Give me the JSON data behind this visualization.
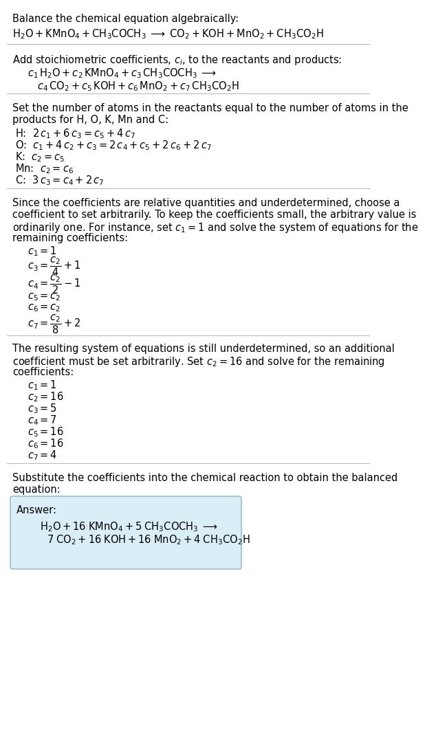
{
  "bg_color": "#ffffff",
  "text_color": "#000000",
  "box_fill": "#daeef8",
  "box_edge": "#8ab4c8",
  "sep_color": "#bbbbbb",
  "fs": 10.5,
  "fs_math": 10.5,
  "s1_head": "Balance the chemical equation algebraically:",
  "s1_eq": "$\\mathrm{H_2O + KMnO_4 + CH_3COCH_3 \\;\\longrightarrow\\; CO_2 + KOH + MnO_2 + CH_3CO_2H}$",
  "s2_head": "Add stoichiometric coefficients, $c_i$, to the reactants and products:",
  "s2_l1": "$c_1\\,\\mathrm{H_2O} + c_2\\,\\mathrm{KMnO_4} + c_3\\,\\mathrm{CH_3COCH_3} \\;\\longrightarrow$",
  "s2_l2": "$c_4\\,\\mathrm{CO_2} + c_5\\,\\mathrm{KOH} + c_6\\,\\mathrm{MnO_2} + c_7\\,\\mathrm{CH_3CO_2H}$",
  "s3_head1": "Set the number of atoms in the reactants equal to the number of atoms in the",
  "s3_head2": "products for H, O, K, Mn and C:",
  "s3_lines": [
    [
      "H:",
      "$2\\,c_1 + 6\\,c_3 = c_5 + 4\\,c_7$"
    ],
    [
      "O:",
      "$c_1 + 4\\,c_2 + c_3 = 2\\,c_4 + c_5 + 2\\,c_6 + 2\\,c_7$"
    ],
    [
      "K:",
      "$c_2 = c_5$"
    ],
    [
      "Mn:",
      "$c_2 = c_6$"
    ],
    [
      "C:",
      "$3\\,c_3 = c_4 + 2\\,c_7$"
    ]
  ],
  "s4_head1": "Since the coefficients are relative quantities and underdetermined, choose a",
  "s4_head2": "coefficient to set arbitrarily. To keep the coefficients small, the arbitrary value is",
  "s4_head3": "ordinarily one. For instance, set $c_1 = 1$ and solve the system of equations for the",
  "s4_head4": "remaining coefficients:",
  "s4_lines": [
    "$c_1 = 1$",
    "$c_3 = \\dfrac{c_2}{4} + 1$",
    "$c_4 = \\dfrac{c_2}{2} - 1$",
    "$c_5 = c_2$",
    "$c_6 = c_2$",
    "$c_7 = \\dfrac{c_2}{8} + 2$"
  ],
  "s4_line_heights": [
    16,
    26,
    26,
    16,
    16,
    26
  ],
  "s5_head1": "The resulting system of equations is still underdetermined, so an additional",
  "s5_head2": "coefficient must be set arbitrarily. Set $c_2 = 16$ and solve for the remaining",
  "s5_head3": "coefficients:",
  "s5_lines": [
    "$c_1 = 1$",
    "$c_2 = 16$",
    "$c_3 = 5$",
    "$c_4 = 7$",
    "$c_5 = 16$",
    "$c_6 = 16$",
    "$c_7 = 4$"
  ],
  "s6_head1": "Substitute the coefficients into the chemical reaction to obtain the balanced",
  "s6_head2": "equation:",
  "ans_label": "Answer:",
  "ans_l1": "$\\mathrm{H_2O + 16\\;KMnO_4 + 5\\;CH_3COCH_3 \\;\\longrightarrow}$",
  "ans_l2": "$\\mathrm{7\\;CO_2 + 16\\;KOH + 16\\;MnO_2 + 4\\;CH_3CO_2H}$"
}
